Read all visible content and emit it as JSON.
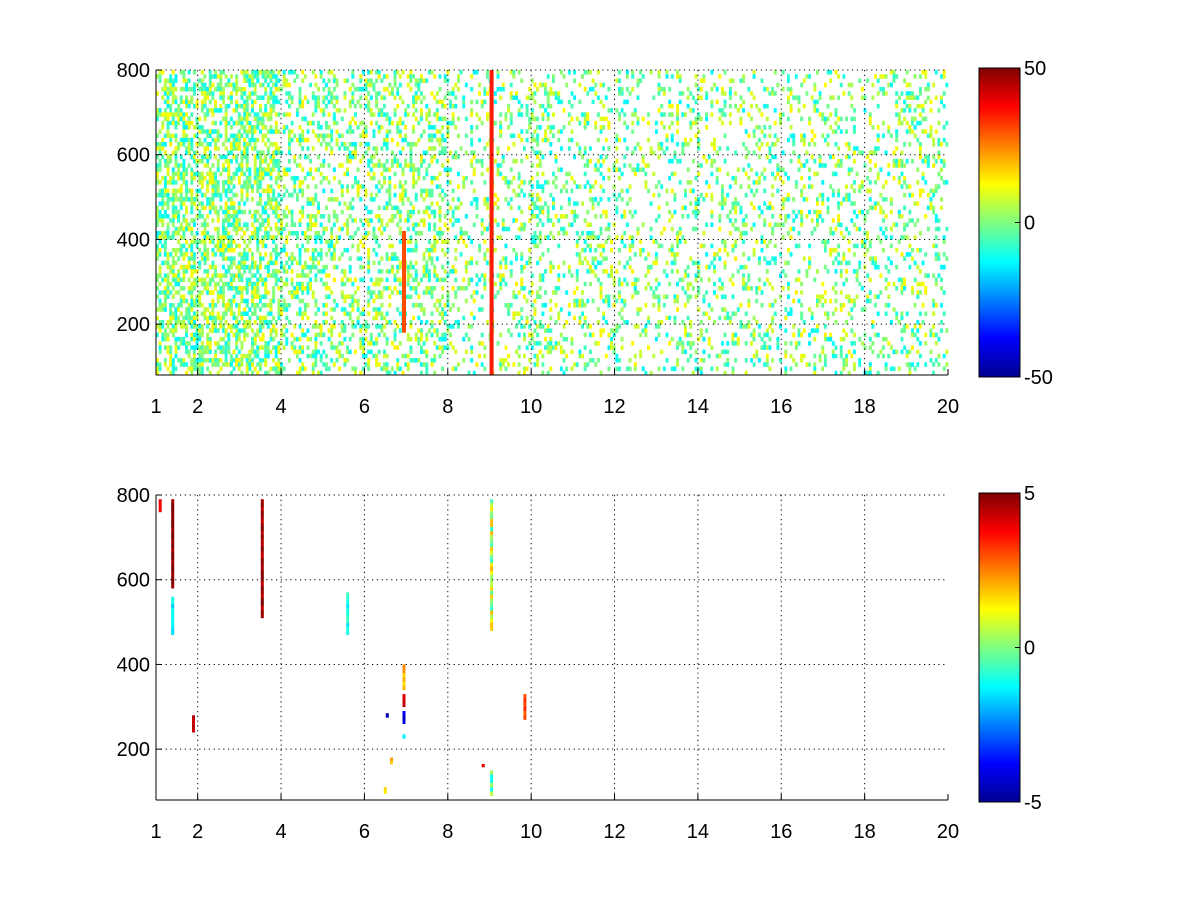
{
  "chart_data": [
    {
      "type": "heatmap",
      "title": "",
      "xlabel": "",
      "ylabel": "",
      "xlim": [
        1,
        20
      ],
      "ylim": [
        80,
        800
      ],
      "xticks": [
        1,
        2,
        4,
        6,
        8,
        10,
        12,
        14,
        16,
        18,
        20
      ],
      "yticks": [
        200,
        400,
        600,
        800
      ],
      "grid": true,
      "colormap": "jet",
      "colorbar": {
        "min": -50,
        "max": 50,
        "ticks": [
          -50,
          0,
          50
        ]
      },
      "description_values": {
        "empty_cells": "white (no data)",
        "dominant_range": [
          -15,
          15
        ],
        "strong_columns": [
          {
            "x": 6.95,
            "ymin": 180,
            "ymax": 420,
            "value": 30
          },
          {
            "x": 9.05,
            "ymin": 80,
            "ymax": 800,
            "value": 35
          }
        ]
      }
    },
    {
      "type": "heatmap",
      "title": "",
      "xlabel": "",
      "ylabel": "",
      "xlim": [
        1,
        20
      ],
      "ylim": [
        80,
        800
      ],
      "xticks": [
        1,
        2,
        4,
        6,
        8,
        10,
        12,
        14,
        16,
        18,
        20
      ],
      "yticks": [
        200,
        400,
        600,
        800
      ],
      "grid": true,
      "colormap": "jet",
      "colorbar": {
        "min": -5,
        "max": 5,
        "ticks": [
          -5,
          0,
          5
        ]
      },
      "segments": [
        {
          "x": 1.4,
          "ymin": 580,
          "ymax": 790,
          "value": 5
        },
        {
          "x": 1.4,
          "ymin": 470,
          "ymax": 560,
          "value": -1.5
        },
        {
          "x": 1.1,
          "ymin": 760,
          "ymax": 790,
          "value": 4
        },
        {
          "x": 1.9,
          "ymin": 240,
          "ymax": 280,
          "value": 4.5
        },
        {
          "x": 3.55,
          "ymin": 510,
          "ymax": 790,
          "value": 4.8
        },
        {
          "x": 5.6,
          "ymin": 470,
          "ymax": 570,
          "value": -1
        },
        {
          "x": 6.55,
          "ymin": 275,
          "ymax": 285,
          "value": -4.5
        },
        {
          "x": 6.65,
          "ymin": 165,
          "ymax": 180,
          "value": 2
        },
        {
          "x": 6.5,
          "ymin": 95,
          "ymax": 110,
          "value": 1.5
        },
        {
          "x": 6.95,
          "ymin": 340,
          "ymax": 400,
          "value": 2
        },
        {
          "x": 6.95,
          "ymin": 300,
          "ymax": 330,
          "value": 4
        },
        {
          "x": 6.95,
          "ymin": 260,
          "ymax": 290,
          "value": -4
        },
        {
          "x": 6.95,
          "ymin": 225,
          "ymax": 235,
          "value": -1
        },
        {
          "x": 8.85,
          "ymin": 158,
          "ymax": 165,
          "value": 4.5
        },
        {
          "x": 9.05,
          "ymin": 480,
          "ymax": 790,
          "value": 0.5
        },
        {
          "x": 9.05,
          "ymin": 90,
          "ymax": 150,
          "value": -0.5
        },
        {
          "x": 9.85,
          "ymin": 270,
          "ymax": 330,
          "value": 3
        }
      ]
    }
  ]
}
